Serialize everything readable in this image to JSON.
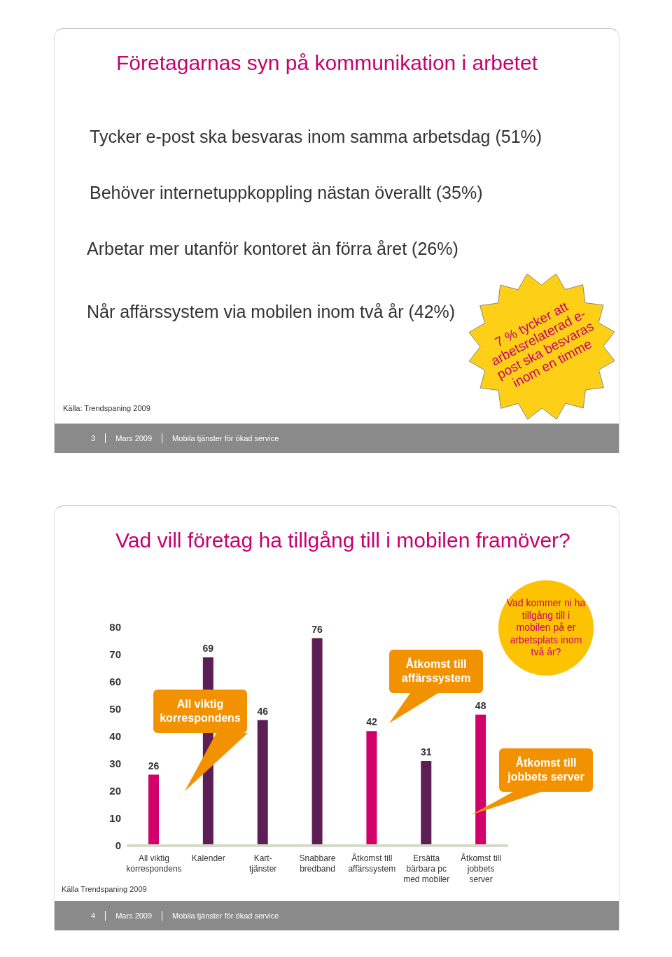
{
  "chart_data": [
    {
      "type": "other",
      "title": "Företagarnas syn på kommunikation i arbetet",
      "annotations": [
        "Tycker e-post ska besvaras inom samma arbetsdag (51%)",
        "Behöver internetuppkoppling nästan överallt (35%)",
        "Arbetar mer utanför kontoret än förra året (26%)",
        "Når affärssystem via mobilen inom två år (42%)",
        "7 % tycker att arbetsrelaterad e-post ska besvaras inom en timme",
        "Källa: Trendspaning 2009",
        "3",
        "Mars 2009",
        "Mobila tjänster för ökad service"
      ]
    },
    {
      "type": "bar",
      "title": "Vad vill företag ha tillgång till i mobilen framöver?",
      "categories": [
        "All viktig korrespondens",
        "Kalender",
        "Kart-tjänster",
        "Snabbare bredband",
        "Åtkomst till affärssystem",
        "Ersätta bärbara pc med mobiler",
        "Åtkomst till jobbets server"
      ],
      "values": [
        26,
        69,
        46,
        76,
        42,
        31,
        48
      ],
      "colors": [
        "#d2006b",
        "#5c1e55",
        "#5c1e55",
        "#5c1e55",
        "#d2006b",
        "#5c1e55",
        "#d2006b"
      ],
      "ylim": [
        0,
        80
      ],
      "yticks": [
        0,
        10,
        20,
        30,
        40,
        50,
        60,
        70,
        80
      ],
      "data_labels": true,
      "annotations": [
        "All viktig korrespondens",
        "Åtkomst till affärssystem",
        "Åtkomst till jobbets server",
        "Vad kommer ni ha tillgång till i mobilen på er arbetsplats inom två år?",
        "Källa Trendspaning 2009",
        "4",
        "Mars 2009",
        "Mobila tjänster för ökad service"
      ]
    }
  ]
}
